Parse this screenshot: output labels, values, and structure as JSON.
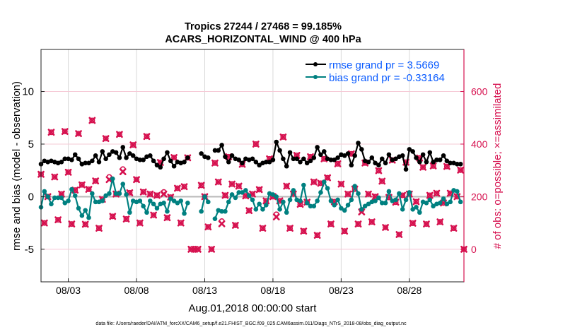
{
  "chart_data": {
    "type": "line",
    "title": [
      "Tropics 27244 / 27468 = 99.185%",
      "ACARS_HORIZONTAL_WIND @ 400 hPa"
    ],
    "xlabel": "Aug.01,2018 00:00:00 start",
    "ylabel_left": "rmse and bias (model - observation)",
    "ylabel_right": "# of obs: o=possible; ×=assimilated",
    "footnote": "data file: /Users/raeder/DAI/ATM_forcXX/CAM6_setup/f.e21.FHIST_BGC.f09_025.CAM6assim.011/Diags_NTrS_2018-08/obs_diag_output.nc",
    "xlim": [
      "08/01 00",
      "09/01 00"
    ],
    "x_ticks": [
      "08/03",
      "08/08",
      "08/13",
      "08/18",
      "08/23",
      "08/28"
    ],
    "ylim_left": [
      -8.1,
      14
    ],
    "yticks_left": [
      -5,
      0,
      5,
      10
    ],
    "ylim_right": [
      -124,
      760
    ],
    "yticks_right": [
      0,
      200,
      400,
      600
    ],
    "grid": true,
    "legend_position": "top-right",
    "legend": [
      "rmse grand pr = 3.5669",
      "bias grand pr = -0.33164"
    ],
    "colors": {
      "rmse": "#000000",
      "bias": "#008080",
      "obs": "#D6114F",
      "legend_text": "#0A5BFF",
      "right_axis": "#D6114F",
      "grid": "#D9D9D9",
      "zero_line": "#BBBBBB",
      "right_grid": "#F6C9D6"
    },
    "x": [
      "08/01 00",
      "08/01 06",
      "08/01 12",
      "08/01 18",
      "08/02 00",
      "08/02 06",
      "08/02 12",
      "08/02 18",
      "08/03 00",
      "08/03 06",
      "08/03 12",
      "08/03 18",
      "08/04 00",
      "08/04 06",
      "08/04 12",
      "08/04 18",
      "08/05 00",
      "08/05 06",
      "08/05 12",
      "08/05 18",
      "08/06 00",
      "08/06 06",
      "08/06 12",
      "08/06 18",
      "08/07 00",
      "08/07 06",
      "08/07 12",
      "08/07 18",
      "08/08 00",
      "08/08 06",
      "08/08 12",
      "08/08 18",
      "08/09 00",
      "08/09 06",
      "08/09 12",
      "08/09 18",
      "08/10 00",
      "08/10 06",
      "08/10 12",
      "08/10 18",
      "08/11 00",
      "08/11 06",
      "08/11 12",
      "08/11 18",
      "08/12 00",
      "08/12 06",
      "08/12 12",
      "08/12 18",
      "08/13 00",
      "08/13 06",
      "08/13 12",
      "08/13 18",
      "08/14 00",
      "08/14 06",
      "08/14 12",
      "08/14 18",
      "08/15 00",
      "08/15 06",
      "08/15 12",
      "08/15 18",
      "08/16 00",
      "08/16 06",
      "08/16 12",
      "08/16 18",
      "08/17 00",
      "08/17 06",
      "08/17 12",
      "08/17 18",
      "08/18 00",
      "08/18 06",
      "08/18 12",
      "08/18 18",
      "08/19 00",
      "08/19 06",
      "08/19 12",
      "08/19 18",
      "08/20 00",
      "08/20 06",
      "08/20 12",
      "08/20 18",
      "08/21 00",
      "08/21 06",
      "08/21 12",
      "08/21 18",
      "08/22 00",
      "08/22 06",
      "08/22 12",
      "08/22 18",
      "08/23 00",
      "08/23 06",
      "08/23 12",
      "08/23 18",
      "08/24 00",
      "08/24 06",
      "08/24 12",
      "08/24 18",
      "08/25 00",
      "08/25 06",
      "08/25 12",
      "08/25 18",
      "08/26 00",
      "08/26 06",
      "08/26 12",
      "08/26 18",
      "08/27 00",
      "08/27 06",
      "08/27 12",
      "08/27 18",
      "08/28 00",
      "08/28 06",
      "08/28 12",
      "08/28 18",
      "08/29 00",
      "08/29 06",
      "08/29 12",
      "08/29 18",
      "08/30 00",
      "08/30 06",
      "08/30 12",
      "08/30 18",
      "08/31 00",
      "08/31 06",
      "08/31 12",
      "08/31 18",
      "09/01 00"
    ],
    "series": [
      {
        "name": "rmse",
        "axis": "left",
        "values": [
          3.1,
          3.4,
          3.3,
          3.4,
          3.3,
          3.2,
          3.3,
          3.6,
          3.6,
          3.5,
          4.0,
          3.6,
          3.1,
          3.2,
          3.2,
          3.4,
          3.9,
          3.3,
          4.3,
          3.6,
          4.0,
          4.3,
          4.2,
          3.7,
          4.7,
          3.7,
          4.1,
          3.9,
          3.6,
          3.5,
          3.5,
          3.8,
          3.9,
          3.4,
          3.0,
          2.8,
          3.6,
          4.2,
          3.4,
          2.9,
          3.3,
          3.2,
          3.3,
          3.7,
          null,
          null,
          null,
          4.1,
          3.8,
          3.7,
          null,
          4.4,
          4.4,
          4.9,
          3.8,
          3.3,
          3.9,
          3.6,
          3.5,
          3.2,
          3.6,
          3.5,
          3.6,
          3.3,
          3.0,
          3.2,
          3.3,
          3.3,
          3.5,
          5.2,
          4.4,
          3.6,
          2.9,
          4.2,
          3.6,
          3.6,
          3.3,
          3.6,
          3.2,
          3.4,
          3.7,
          4.7,
          4.0,
          4.3,
          3.6,
          3.5,
          3.5,
          3.7,
          4.0,
          3.9,
          4.1,
          3.0,
          3.9,
          5.1,
          4.5,
          3.4,
          3.3,
          3.7,
          3.2,
          3.0,
          3.6,
          3.2,
          4.0,
          3.5,
          3.6,
          3.8,
          3.9,
          2.6,
          4.5,
          4.3,
          3.7,
          3.3,
          4.0,
          3.3,
          4.2,
          3.3,
          3.5,
          3.5,
          3.9,
          3.4,
          3.2,
          3.2,
          3.1,
          3.1,
          null
        ]
      },
      {
        "name": "bias",
        "axis": "left",
        "values": [
          -1.0,
          0.5,
          0.0,
          -0.7,
          -0.1,
          -0.1,
          -0.1,
          -0.6,
          -0.4,
          0.7,
          0.1,
          -1.1,
          -1.8,
          -1.3,
          -2.0,
          0.3,
          -0.5,
          -0.5,
          -0.4,
          0.1,
          0.3,
          1.7,
          0.3,
          0.3,
          1.2,
          0.2,
          -1.5,
          -0.4,
          -0.5,
          -0.4,
          -0.9,
          -1.5,
          -0.4,
          -0.7,
          -1.1,
          -0.7,
          -0.6,
          -1.4,
          -0.2,
          -0.4,
          -0.6,
          -0.4,
          -1.6,
          -0.6,
          null,
          null,
          null,
          -1.4,
          0.0,
          -0.5,
          null,
          -2.1,
          -1.3,
          -1.4,
          -1.4,
          -0.5,
          0.2,
          -0.1,
          0.4,
          0.4,
          0.6,
          0.1,
          -0.3,
          -1.2,
          -0.7,
          -1.2,
          -0.8,
          0.3,
          0.2,
          0.0,
          -1.2,
          -0.5,
          -1.5,
          -0.3,
          0.6,
          -0.3,
          -0.4,
          1.1,
          -0.6,
          -0.9,
          -0.9,
          -0.4,
          0.4,
          1.4,
          0.8,
          -0.4,
          -0.8,
          -0.3,
          -1.1,
          -1.3,
          -0.8,
          -0.3,
          1.0,
          0.3,
          -1.2,
          -0.9,
          -0.7,
          -0.5,
          -0.4,
          -0.1,
          -0.6,
          -0.6,
          0.5,
          -0.4,
          -0.3,
          0.3,
          -1.2,
          -0.3,
          0.4,
          -1.2,
          -1.0,
          -1.5,
          -0.5,
          -0.6,
          -0.3,
          -0.9,
          -0.7,
          -0.6,
          -0.2,
          -0.7,
          -0.5,
          0.6,
          0.5,
          -0.5,
          null
        ]
      },
      {
        "name": "possible",
        "axis": "right",
        "marker": "o",
        "values": [
          285,
          100,
          200,
          445,
          275,
          112,
          210,
          448,
          293,
          96,
          225,
          440,
          245,
          95,
          228,
          490,
          260,
          80,
          190,
          421,
          275,
          125,
          210,
          437,
          305,
          115,
          215,
          397,
          265,
          100,
          218,
          429,
          210,
          130,
          205,
          330,
          218,
          120,
          198,
          349,
          232,
          100,
          238,
          348,
          0,
          0,
          0,
          243,
          200,
          85,
          0,
          328,
          256,
          107,
          205,
          352,
          248,
          91,
          240,
          323,
          203,
          147,
          210,
          400,
          227,
          80,
          184,
          344,
          200,
          133,
          184,
          427,
          240,
          80,
          210,
          357,
          171,
          69,
          179,
          352,
          256,
          53,
          251,
          344,
          272,
          96,
          181,
          325,
          248,
          69,
          210,
          363,
          229,
          96,
          149,
          328,
          210,
          104,
          200,
          299,
          259,
          83,
          197,
          339,
          179,
          56,
          205,
          331,
          210,
          99,
          181,
          347,
          312,
          96,
          205,
          317,
          213,
          104,
          176,
          315,
          213,
          80,
          200,
          301,
          0
        ]
      },
      {
        "name": "assimilated",
        "axis": "right",
        "marker": "x",
        "values": [
          285,
          100,
          200,
          445,
          275,
          112,
          210,
          448,
          293,
          96,
          225,
          440,
          245,
          95,
          228,
          490,
          260,
          80,
          190,
          421,
          265,
          125,
          210,
          437,
          295,
          115,
          215,
          397,
          265,
          100,
          218,
          429,
          210,
          130,
          205,
          330,
          210,
          120,
          198,
          349,
          232,
          100,
          238,
          348,
          0,
          0,
          0,
          243,
          200,
          85,
          0,
          328,
          256,
          97,
          205,
          352,
          248,
          91,
          240,
          323,
          203,
          147,
          210,
          400,
          227,
          80,
          184,
          344,
          200,
          123,
          184,
          427,
          240,
          80,
          210,
          357,
          171,
          69,
          179,
          352,
          256,
          53,
          251,
          344,
          272,
          96,
          181,
          325,
          248,
          69,
          210,
          363,
          229,
          96,
          142,
          328,
          210,
          104,
          200,
          299,
          259,
          83,
          197,
          339,
          179,
          56,
          205,
          331,
          210,
          99,
          181,
          347,
          312,
          96,
          205,
          317,
          213,
          104,
          176,
          315,
          213,
          80,
          200,
          301,
          0
        ]
      }
    ]
  }
}
